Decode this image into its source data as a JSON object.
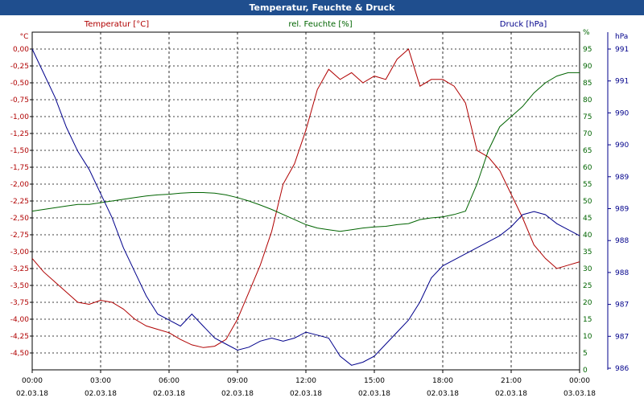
{
  "window": {
    "title": "Temperatur, Feuchte & Druck"
  },
  "colors": {
    "title_bg": "#1f4e8e",
    "temperature": "#b00000",
    "humidity": "#006400",
    "pressure": "#00008b",
    "grid": "#000000"
  },
  "chart_data": {
    "type": "line",
    "title": "Temperatur, Feuchte & Druck",
    "grid": true,
    "x_ticks": [
      {
        "time": "00:00",
        "date": "02.03.18"
      },
      {
        "time": "03:00",
        "date": "02.03.18"
      },
      {
        "time": "06:00",
        "date": "02.03.18"
      },
      {
        "time": "09:00",
        "date": "02.03.18"
      },
      {
        "time": "12:00",
        "date": "02.03.18"
      },
      {
        "time": "15:00",
        "date": "02.03.18"
      },
      {
        "time": "18:00",
        "date": "02.03.18"
      },
      {
        "time": "21:00",
        "date": "02.03.18"
      },
      {
        "time": "00:00",
        "date": "03.03.18"
      }
    ],
    "x_hours": [
      0,
      0.5,
      1,
      1.5,
      2,
      2.5,
      3,
      3.5,
      4,
      4.5,
      5,
      5.5,
      6,
      6.5,
      7,
      7.5,
      8,
      8.5,
      9,
      9.5,
      10,
      10.5,
      11,
      11.5,
      12,
      12.5,
      13,
      13.5,
      14,
      14.5,
      15,
      15.5,
      16,
      16.5,
      17,
      17.5,
      18,
      18.5,
      19,
      19.5,
      20,
      20.5,
      21,
      21.5,
      22,
      22.5,
      23,
      23.5,
      24
    ],
    "axes": {
      "temperature": {
        "label": "Temperatur [°C]",
        "unit_label": "°C",
        "range": [
          -4.75,
          0.25
        ],
        "ticks": [
          "0,00",
          "-0,25",
          "-0,50",
          "-0,75",
          "-1,00",
          "-1,25",
          "-1,50",
          "-1,75",
          "-2,00",
          "-2,25",
          "-2,50",
          "-2,75",
          "-3,00",
          "-3,25",
          "-3,50",
          "-3,75",
          "-4,00",
          "-4,25",
          "-4,50"
        ]
      },
      "humidity": {
        "label": "rel. Feuchte [%]",
        "unit_label": "%",
        "range": [
          0,
          100
        ],
        "ticks": [
          "0",
          "5",
          "10",
          "15",
          "20",
          "25",
          "30",
          "35",
          "40",
          "45",
          "50",
          "55",
          "60",
          "65",
          "70",
          "75",
          "80",
          "85",
          "90",
          "95",
          "%"
        ]
      },
      "pressure": {
        "label": "Druck [hPa]",
        "unit_label": "hPa",
        "ticks": [
          "986",
          "987",
          "987",
          "988",
          "988",
          "989",
          "989",
          "990",
          "990",
          "991",
          "991"
        ]
      }
    },
    "series": [
      {
        "name": "Temperatur [°C]",
        "axis": "temperature",
        "values": [
          -3.1,
          -3.3,
          -3.45,
          -3.6,
          -3.75,
          -3.78,
          -3.72,
          -3.75,
          -3.85,
          -4.0,
          -4.1,
          -4.15,
          -4.2,
          -4.3,
          -4.38,
          -4.42,
          -4.4,
          -4.3,
          -4.0,
          -3.6,
          -3.2,
          -2.7,
          -2.0,
          -1.7,
          -1.2,
          -0.6,
          -0.3,
          -0.45,
          -0.35,
          -0.5,
          -0.4,
          -0.45,
          -0.15,
          0.0,
          -0.55,
          -0.45,
          -0.45,
          -0.55,
          -0.8,
          -1.5,
          -1.6,
          -1.8,
          -2.15,
          -2.5,
          -2.9,
          -3.1,
          -3.25,
          -3.2,
          -3.15
        ]
      },
      {
        "name": "rel. Feuchte [%]",
        "axis": "humidity",
        "values": [
          47,
          47.5,
          48,
          48.5,
          49,
          49,
          49.5,
          50,
          50.5,
          51,
          51.5,
          51.8,
          52,
          52.3,
          52.5,
          52.5,
          52.3,
          51.8,
          51,
          50,
          48.8,
          47.5,
          46,
          44.5,
          43,
          42,
          41.5,
          41,
          41.5,
          42,
          42.3,
          42.5,
          43,
          43.3,
          44.5,
          45,
          45.3,
          46,
          47,
          55,
          65,
          72,
          75,
          78,
          82,
          85,
          87,
          88,
          88
        ]
      },
      {
        "name": "Druck [hPa]",
        "axis": "pressure",
        "ylim": [
          986,
          991.3
        ],
        "values": [
          991.3,
          990.9,
          990.5,
          990.0,
          989.6,
          989.3,
          988.9,
          988.5,
          988.0,
          987.6,
          987.2,
          986.9,
          986.8,
          986.7,
          986.9,
          986.7,
          986.5,
          986.4,
          986.3,
          986.35,
          986.45,
          986.5,
          986.45,
          986.5,
          986.6,
          986.55,
          986.5,
          986.2,
          986.05,
          986.1,
          986.2,
          986.4,
          986.6,
          986.8,
          987.1,
          987.5,
          987.7,
          987.8,
          987.9,
          988.0,
          988.1,
          988.2,
          988.35,
          988.55,
          988.6,
          988.55,
          988.4,
          988.3,
          988.2
        ]
      }
    ]
  }
}
